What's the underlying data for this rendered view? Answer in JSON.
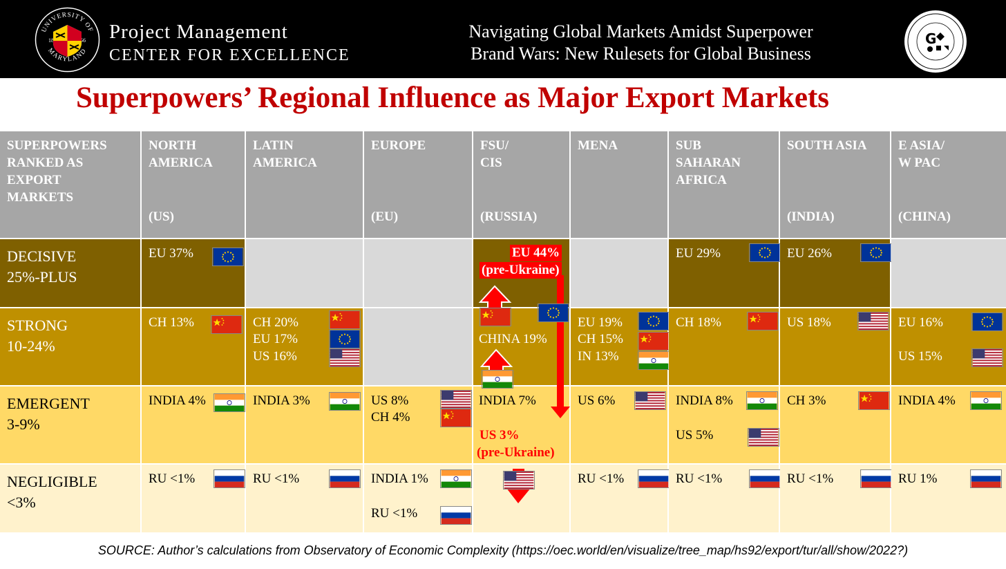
{
  "header": {
    "seal_text_top": "UNIVERSITY OF",
    "seal_text_bottom": "MARYLAND",
    "seal_year_left": "18",
    "seal_year_right": "56",
    "pm_title": "Project Management",
    "pm_subtitle": "CENTER FOR EXCELLENCE",
    "title_line1": "Navigating Global Markets Amidst Superpower",
    "title_line2": "Brand Wars: New Rulesets for Global Business",
    "gac_letters": "G"
  },
  "main_title": "Superpowers’ Regional Influence as Major Export Markets",
  "table": {
    "corner_header": "SUPERPOWERS RANKED AS EXPORT MARKETS",
    "columns": [
      {
        "name": "NORTH AMERICA",
        "sub": "(US)"
      },
      {
        "name": "LATIN AMERICA",
        "sub": ""
      },
      {
        "name": "EUROPE",
        "sub": "(EU)"
      },
      {
        "name": "FSU/ CIS",
        "sub": "(RUSSIA)"
      },
      {
        "name": "MENA",
        "sub": ""
      },
      {
        "name": "SUB SAHARAN AFRICA",
        "sub": ""
      },
      {
        "name": "SOUTH ASIA",
        "sub": "(INDIA)"
      },
      {
        "name": "E ASIA/ W PAC",
        "sub": "(CHINA)"
      }
    ],
    "rows": [
      {
        "label1": "DECISIVE",
        "label2": "25%-PLUS"
      },
      {
        "label1": "STRONG",
        "label2": "10-24%"
      },
      {
        "label1": "EMERGENT",
        "label2": "3-9%"
      },
      {
        "label1": "NEGLIGIBLE",
        "label2": "<3%"
      }
    ],
    "cells": {
      "na_d": "EU 37%",
      "ssa_d": "EU 29%",
      "sa_d": "EU 26%",
      "fsu_d_eu": "EU 44%",
      "fsu_d_pre": "(pre-Ukraine)",
      "na_s": "CH 13%",
      "la_s1": "CH 20%",
      "la_s2": "EU 17%",
      "la_s3": "US 16%",
      "fsu_s": "CHINA 19%",
      "mena_s1": "EU 19%",
      "mena_s2": "CH 15%",
      "mena_s3": "IN 13%",
      "ssa_s": "CH 18%",
      "sa_s": "US 18%",
      "ea_s1": "EU 16%",
      "ea_s2": "US 15%",
      "na_e": "INDIA 4%",
      "la_e": "INDIA 3%",
      "eu_e1": "US 8%",
      "eu_e2": "CH 4%",
      "fsu_e": "INDIA 7%",
      "fsu_e_us": "US 3%",
      "fsu_e_pre": "(pre-Ukraine)",
      "mena_e": "US 6%",
      "ssa_e1": "INDIA 8%",
      "ssa_e2": "US 5%",
      "sa_e": "CH 3%",
      "ea_e": "INDIA 4%",
      "na_n": "RU <1%",
      "la_n": "RU <1%",
      "eu_n1": "INDIA 1%",
      "eu_n2": "RU <1%",
      "mena_n": "RU <1%",
      "ssa_n": "RU <1%",
      "sa_n": "RU <1%",
      "ea_n": "RU 1%"
    }
  },
  "source": "SOURCE: Author’s calculations from Observatory of Economic Complexity (https://oec.world/en/visualize/tree_map/hs92/export/tur/all/show/2022?)",
  "colors": {
    "decisive": "#7f6000",
    "strong": "#bf9000",
    "emergent": "#ffd966",
    "negligible": "#fff2cc",
    "header": "#a6a6a6",
    "title_red": "#c00000"
  }
}
